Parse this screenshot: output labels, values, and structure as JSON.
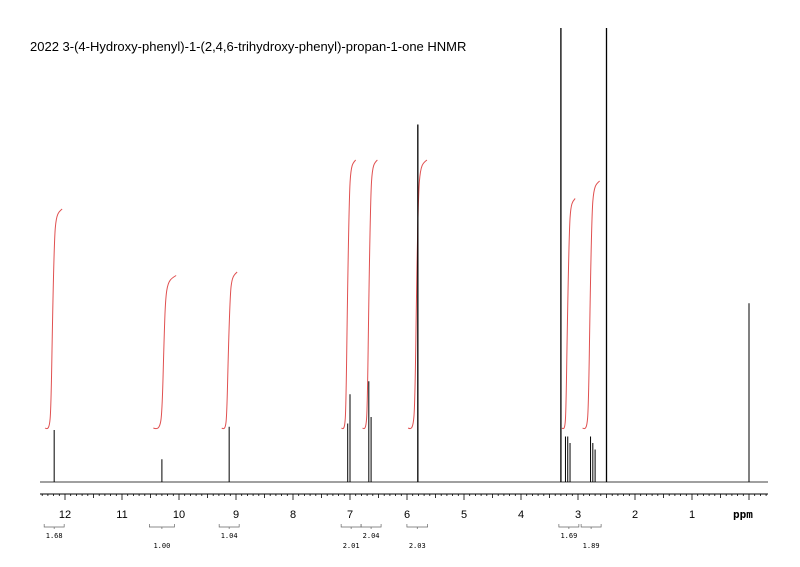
{
  "chart_data": {
    "type": "line",
    "title": "2022   3-(4-Hydroxy-phenyl)-1-(2,4,6-trihydroxy-phenyl)-propan-1-one HNMR",
    "xlabel": "ppm",
    "ylabel": "",
    "xlim": [
      12.3,
      -0.2
    ],
    "x_reversed": true,
    "grid": false,
    "legend": "none",
    "x_ticks": [
      12,
      11,
      10,
      9,
      8,
      7,
      6,
      5,
      4,
      3,
      2,
      1
    ],
    "x_tick_labels": [
      "12",
      "11",
      "10",
      "9",
      "8",
      "7",
      "6",
      "5",
      "4",
      "3",
      "2",
      "1"
    ],
    "colors": {
      "spectrum": "#000000",
      "integral": "#e05050",
      "axis": "#000000"
    },
    "peaks": [
      {
        "ppm": 12.19,
        "height": 0.16
      },
      {
        "ppm": 10.3,
        "height": 0.07
      },
      {
        "ppm": 9.12,
        "height": 0.17
      },
      {
        "ppm": 7.04,
        "height": 0.18
      },
      {
        "ppm": 7.0,
        "height": 0.27
      },
      {
        "ppm": 6.67,
        "height": 0.31
      },
      {
        "ppm": 6.63,
        "height": 0.2
      },
      {
        "ppm": 5.81,
        "height": 1.1
      },
      {
        "ppm": 3.3,
        "height": 1.4
      },
      {
        "ppm": 3.22,
        "height": 0.14
      },
      {
        "ppm": 3.18,
        "height": 0.14
      },
      {
        "ppm": 3.14,
        "height": 0.12
      },
      {
        "ppm": 2.78,
        "height": 0.14
      },
      {
        "ppm": 2.74,
        "height": 0.12
      },
      {
        "ppm": 2.7,
        "height": 0.1
      },
      {
        "ppm": 2.5,
        "height": 1.4
      },
      {
        "ppm": 0.0,
        "height": 0.55
      }
    ],
    "integrals": [
      {
        "ppm_from": 12.35,
        "ppm_to": 12.05,
        "curve_top": 0.78,
        "label": "1.68",
        "label_row": 1,
        "bracket_center": 12.19
      },
      {
        "ppm_from": 10.45,
        "ppm_to": 10.05,
        "curve_top": 0.59,
        "label": "1.00",
        "label_row": 2,
        "bracket_center": 10.3
      },
      {
        "ppm_from": 9.25,
        "ppm_to": 8.98,
        "curve_top": 0.6,
        "label": "1.04",
        "label_row": 1,
        "bracket_center": 9.12
      },
      {
        "ppm_from": 7.15,
        "ppm_to": 6.9,
        "curve_top": 0.92,
        "label": "2.01",
        "label_row": 2,
        "bracket_center": 6.98
      },
      {
        "ppm_from": 6.78,
        "ppm_to": 6.52,
        "curve_top": 0.92,
        "label": "2.04",
        "label_row": 1,
        "bracket_center": 6.63
      },
      {
        "ppm_from": 5.98,
        "ppm_to": 5.65,
        "curve_top": 0.92,
        "label": "2.03",
        "label_row": 2,
        "bracket_center": 5.82
      },
      {
        "ppm_from": 3.28,
        "ppm_to": 3.05,
        "curve_top": 0.81,
        "label": "1.69",
        "label_row": 1,
        "bracket_center": 3.16
      },
      {
        "ppm_from": 2.92,
        "ppm_to": 2.62,
        "curve_top": 0.86,
        "label": "1.89",
        "label_row": 2,
        "bracket_center": 2.77
      }
    ]
  }
}
